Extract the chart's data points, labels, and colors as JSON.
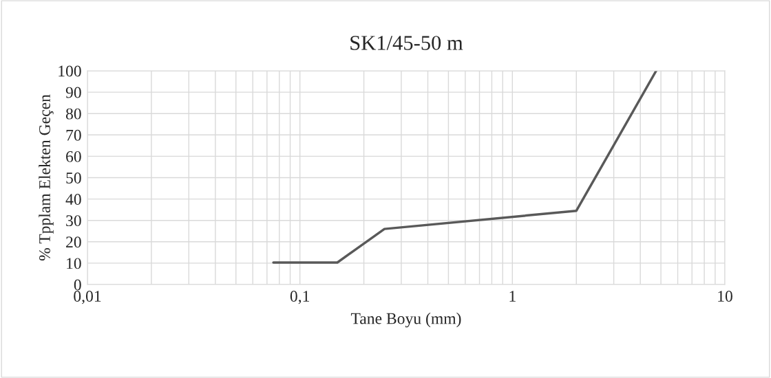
{
  "chart_data": {
    "type": "line",
    "title": "SK1/45-50 m",
    "xlabel": "Tane Boyu (mm)",
    "ylabel": "% Tpplam Elekten Geçen",
    "series": [
      {
        "color": "#595959",
        "x": [
          0.075,
          0.15,
          0.25,
          2,
          4.75
        ],
        "values": [
          10.3,
          10.3,
          26,
          34.5,
          100
        ]
      }
    ],
    "log": "x",
    "xlim": [
      0.01,
      10
    ],
    "xticks": [
      {
        "value": 0.01,
        "label": "0,01"
      },
      {
        "value": 0.1,
        "label": "0,1"
      },
      1,
      10
    ],
    "ylim": [
      0,
      100
    ],
    "yticks": [
      0,
      10,
      20,
      30,
      40,
      50,
      60,
      70,
      80,
      90,
      100
    ],
    "grid": true,
    "marker": "none",
    "line_style": "solid"
  }
}
